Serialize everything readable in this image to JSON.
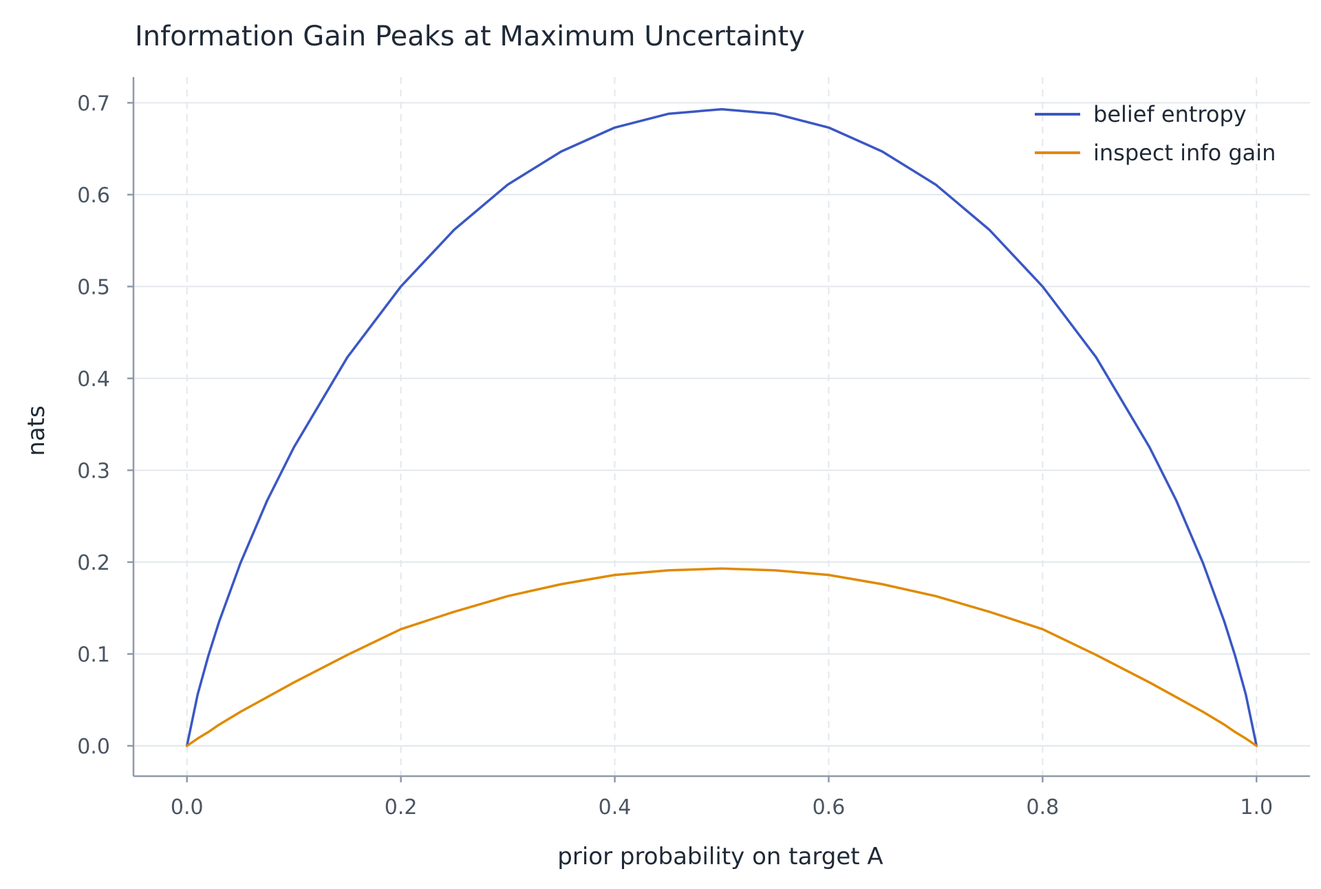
{
  "chart_data": {
    "type": "line",
    "title": "Information Gain Peaks at Maximum Uncertainty",
    "xlabel": "prior probability on target A",
    "ylabel": "nats",
    "xlim": [
      -0.05,
      1.05
    ],
    "ylim": [
      -0.033,
      0.728
    ],
    "x_ticks": [
      "0.0",
      "0.2",
      "0.4",
      "0.6",
      "0.8",
      "1.0"
    ],
    "y_ticks": [
      "0.0",
      "0.1",
      "0.2",
      "0.3",
      "0.4",
      "0.5",
      "0.6",
      "0.7"
    ],
    "grid": true,
    "legend_position": "top-right",
    "x": [
      0.0,
      0.01,
      0.02,
      0.03,
      0.05,
      0.075,
      0.1,
      0.15,
      0.2,
      0.25,
      0.3,
      0.35,
      0.4,
      0.45,
      0.5,
      0.55,
      0.6,
      0.65,
      0.7,
      0.75,
      0.8,
      0.85,
      0.9,
      0.925,
      0.95,
      0.97,
      0.98,
      0.99,
      1.0
    ],
    "series": [
      {
        "name": "belief entropy",
        "color": "#3a57c4",
        "values": [
          0.0,
          0.056,
          0.098,
          0.135,
          0.199,
          0.267,
          0.325,
          0.423,
          0.5,
          0.562,
          0.611,
          0.647,
          0.673,
          0.688,
          0.693,
          0.688,
          0.673,
          0.647,
          0.611,
          0.562,
          0.5,
          0.423,
          0.325,
          0.267,
          0.199,
          0.135,
          0.098,
          0.056,
          0.0
        ]
      },
      {
        "name": "inspect info gain",
        "color": "#e08a00",
        "values": [
          0.0,
          0.008,
          0.015,
          0.023,
          0.037,
          0.053,
          0.069,
          0.099,
          0.127,
          0.146,
          0.163,
          0.176,
          0.186,
          0.191,
          0.193,
          0.191,
          0.186,
          0.176,
          0.163,
          0.146,
          0.127,
          0.099,
          0.069,
          0.053,
          0.037,
          0.023,
          0.015,
          0.008,
          0.0
        ]
      }
    ]
  }
}
